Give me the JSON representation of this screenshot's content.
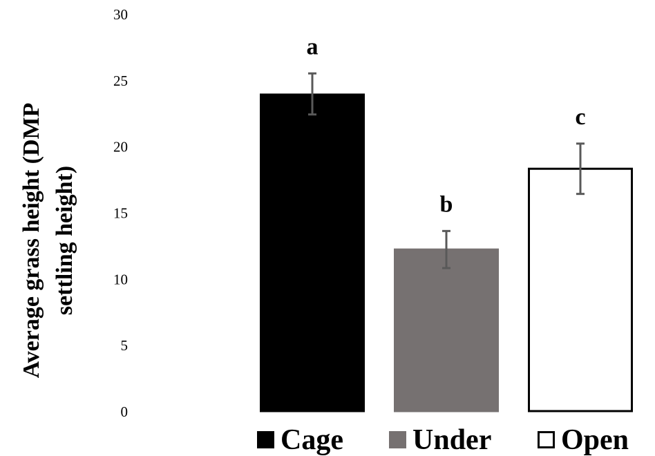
{
  "chart_data": {
    "type": "bar",
    "ylabel": [
      "Average grass height (DMP",
      "settling height)"
    ],
    "ylim": [
      0,
      30
    ],
    "yticks": [
      0,
      5,
      10,
      15,
      20,
      25,
      30
    ],
    "grid": false,
    "legend_position": "bottom",
    "series": [
      {
        "name": "Cage",
        "value": 23.9,
        "error_low": 22.4,
        "error_high": 25.5,
        "letter": "a",
        "fill": "#000000",
        "stroke": "#000000"
      },
      {
        "name": "Under",
        "value": 12.2,
        "error_low": 10.8,
        "error_high": 13.6,
        "letter": "b",
        "fill": "#767171",
        "stroke": "#767171"
      },
      {
        "name": "Open",
        "value": 18.3,
        "error_low": 16.4,
        "error_high": 20.2,
        "letter": "c",
        "fill": "#ffffff",
        "stroke": "#000000"
      }
    ],
    "error_bar_color": "#595959"
  }
}
